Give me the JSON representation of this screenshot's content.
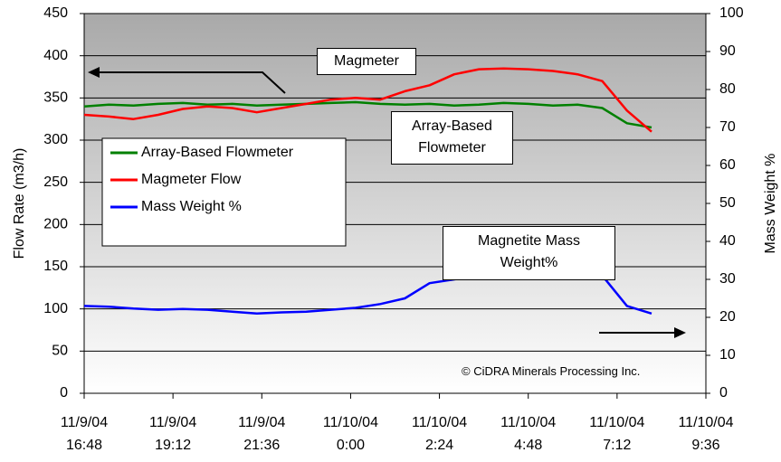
{
  "chart_data": {
    "type": "line",
    "y_label": "Flow Rate (m3/h)",
    "y2_label": "Mass Weight %",
    "annotations": [
      "Magmeter",
      "Array-Based Flowmeter",
      "Magnetite Mass Weight%",
      "© CiDRA Minerals Processing Inc."
    ],
    "x": [
      "2004-11-09T16:48",
      "2004-11-09T17:28",
      "2004-11-09T18:08",
      "2004-11-09T18:48",
      "2004-11-09T19:28",
      "2004-11-09T20:08",
      "2004-11-09T20:48",
      "2004-11-09T21:28",
      "2004-11-09T22:08",
      "2004-11-09T22:48",
      "2004-11-09T23:28",
      "2004-11-10T00:08",
      "2004-11-10T00:48",
      "2004-11-10T01:28",
      "2004-11-10T02:08",
      "2004-11-10T02:48",
      "2004-11-10T03:28",
      "2004-11-10T04:08",
      "2004-11-10T04:48",
      "2004-11-10T05:28",
      "2004-11-10T06:08",
      "2004-11-10T06:48",
      "2004-11-10T07:28",
      "2004-11-10T08:08"
    ],
    "series": [
      {
        "name": "Array-Based Flowmeter",
        "color": "#008000",
        "values": [
          340,
          342,
          341,
          343,
          344,
          342,
          343,
          341,
          342,
          343,
          344,
          345,
          343,
          342,
          343,
          341,
          342,
          344,
          343,
          341,
          342,
          338,
          320,
          315
        ]
      },
      {
        "name": "Magmeter Flow",
        "color": "#ff0000",
        "values": [
          330,
          328,
          325,
          330,
          337,
          340,
          338,
          333,
          338,
          343,
          348,
          350,
          348,
          358,
          365,
          378,
          384,
          385,
          384,
          382,
          378,
          370,
          335,
          310
        ]
      },
      {
        "name": "Mass Weight %",
        "color": "#0000ff",
        "axis": "y2",
        "values": [
          23,
          22.8,
          22.3,
          22,
          22.2,
          22,
          21.5,
          21,
          21.3,
          21.5,
          22,
          22.5,
          23.5,
          25,
          29,
          30,
          31,
          32.5,
          33.5,
          33,
          33,
          31,
          23,
          21
        ]
      }
    ],
    "xlim": [
      "2004-11-09T16:48",
      "2004-11-10T09:36"
    ],
    "xticks": [
      {
        "value": "2004-11-09T16:48",
        "label": "11/9/04 16:48"
      },
      {
        "value": "2004-11-09T19:12",
        "label": "11/9/04 19:12"
      },
      {
        "value": "2004-11-09T21:36",
        "label": "11/9/04 21:36"
      },
      {
        "value": "2004-11-10T00:00",
        "label": "11/10/04 0:00"
      },
      {
        "value": "2004-11-10T02:24",
        "label": "11/10/04 2:24"
      },
      {
        "value": "2004-11-10T04:48",
        "label": "11/10/04 4:48"
      },
      {
        "value": "2004-11-10T07:12",
        "label": "11/10/04 7:12"
      },
      {
        "value": "2004-11-10T09:36",
        "label": "11/10/04 9:36"
      }
    ],
    "ylim": [
      0,
      450
    ],
    "yticks": [
      0,
      50,
      100,
      150,
      200,
      250,
      300,
      350,
      400,
      450
    ],
    "y2lim": [
      0,
      100
    ],
    "y2ticks": [
      0,
      10,
      20,
      30,
      40,
      50,
      60,
      70,
      80,
      90,
      100
    ],
    "grid": true
  }
}
